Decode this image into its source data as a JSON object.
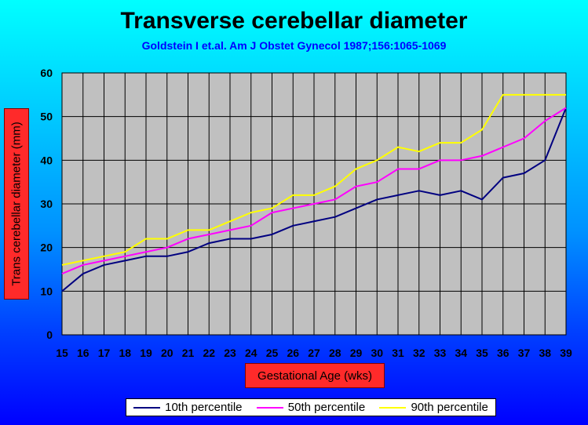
{
  "chart_data": {
    "type": "line",
    "title": "Transverse cerebellar diameter",
    "subtitle": "Goldstein I et.al. Am J Obstet Gynecol 1987;156:1065-1069",
    "xlabel": "Gestational Age (wks)",
    "ylabel": "Trans cerebellar diameter (mm)",
    "x": [
      15,
      16,
      17,
      18,
      19,
      20,
      21,
      22,
      23,
      24,
      25,
      26,
      27,
      28,
      29,
      30,
      31,
      32,
      33,
      34,
      35,
      36,
      37,
      38,
      39
    ],
    "xlim": [
      15,
      39
    ],
    "ylim": [
      0,
      60
    ],
    "yticks": [
      0,
      10,
      20,
      30,
      40,
      50,
      60
    ],
    "grid": true,
    "legend_position": "bottom",
    "plot_background": "#c0c0c0",
    "series": [
      {
        "name": "10th percentile",
        "color": "#000080",
        "values": [
          10,
          14,
          16,
          17,
          18,
          18,
          19,
          21,
          22,
          22,
          23,
          25,
          26,
          27,
          29,
          31,
          32,
          33,
          32,
          33,
          31,
          36,
          37,
          40,
          52
        ]
      },
      {
        "name": "50th percentile",
        "color": "#ff00ff",
        "values": [
          14,
          16,
          17,
          18,
          19,
          20,
          22,
          23,
          24,
          25,
          28,
          29,
          30,
          31,
          34,
          35,
          38,
          38,
          40,
          40,
          41,
          43,
          45,
          49,
          52
        ]
      },
      {
        "name": "90th percentile",
        "color": "#ffff00",
        "values": [
          16,
          17,
          18,
          19,
          22,
          22,
          24,
          24,
          26,
          28,
          29,
          32,
          32,
          34,
          38,
          40,
          43,
          42,
          44,
          44,
          47,
          55,
          55,
          55,
          55
        ]
      }
    ]
  }
}
